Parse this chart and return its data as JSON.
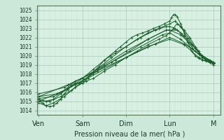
{
  "bg_color": "#cce8d8",
  "plot_bg_color": "#d8f0e4",
  "grid_color_major": "#aac8b8",
  "grid_color_minor": "#c0deca",
  "line_color": "#1a5c2a",
  "marker_color": "#1a5c2a",
  "xlabel_text": "Pression niveau de la mer( hPa )",
  "xtick_labels": [
    "Ven",
    "Sam",
    "Dim",
    "Lun",
    "M"
  ],
  "xtick_positions": [
    0,
    24,
    48,
    72,
    96
  ],
  "ylim": [
    1013.5,
    1025.5
  ],
  "yticks": [
    1014,
    1015,
    1016,
    1017,
    1018,
    1019,
    1020,
    1021,
    1022,
    1023,
    1024,
    1025
  ],
  "xlim": [
    -1,
    100
  ],
  "series": [
    [
      0,
      1015.0,
      2,
      1014.8,
      4,
      1014.5,
      6,
      1014.4,
      8,
      1014.5,
      10,
      1014.8,
      12,
      1015.2,
      14,
      1015.8,
      16,
      1016.3,
      18,
      1016.7,
      20,
      1017.0,
      22,
      1017.0,
      24,
      1017.0,
      27,
      1017.5,
      30,
      1018.2,
      33,
      1018.8,
      36,
      1019.5,
      39,
      1020.0,
      42,
      1020.5,
      45,
      1021.0,
      48,
      1021.5,
      51,
      1022.0,
      54,
      1022.3,
      57,
      1022.5,
      60,
      1022.7,
      63,
      1023.0,
      66,
      1023.2,
      69,
      1023.5,
      72,
      1023.8,
      73,
      1024.2,
      74,
      1024.5,
      75,
      1024.5,
      76,
      1024.3,
      78,
      1023.5,
      80,
      1022.5,
      82,
      1021.5,
      84,
      1020.5,
      86,
      1020.0,
      88,
      1019.7,
      90,
      1019.5,
      92,
      1019.4,
      94,
      1019.3,
      96,
      1019.2
    ],
    [
      0,
      1015.2,
      4,
      1015.0,
      8,
      1015.2,
      12,
      1015.8,
      16,
      1016.5,
      20,
      1017.2,
      24,
      1017.5,
      30,
      1018.5,
      36,
      1019.5,
      42,
      1020.3,
      48,
      1021.0,
      54,
      1021.8,
      60,
      1022.5,
      66,
      1023.0,
      72,
      1023.5,
      75,
      1023.8,
      78,
      1023.2,
      82,
      1022.0,
      86,
      1020.8,
      90,
      1020.0,
      94,
      1019.5,
      96,
      1019.3
    ],
    [
      0,
      1015.0,
      6,
      1015.0,
      12,
      1015.5,
      18,
      1016.2,
      24,
      1017.2,
      32,
      1018.5,
      40,
      1019.8,
      48,
      1021.0,
      56,
      1022.0,
      64,
      1022.8,
      70,
      1023.2,
      72,
      1023.2,
      75,
      1023.0,
      78,
      1022.5,
      82,
      1021.5,
      86,
      1020.5,
      90,
      1019.8,
      94,
      1019.4,
      96,
      1019.2
    ],
    [
      0,
      1015.3,
      8,
      1015.5,
      16,
      1016.3,
      24,
      1017.5,
      36,
      1019.0,
      48,
      1020.5,
      60,
      1021.8,
      70,
      1022.8,
      72,
      1022.8,
      76,
      1022.8,
      80,
      1022.2,
      84,
      1021.3,
      88,
      1020.3,
      92,
      1019.6,
      96,
      1019.1
    ],
    [
      0,
      1015.5,
      10,
      1015.8,
      20,
      1016.8,
      30,
      1018.0,
      40,
      1019.3,
      50,
      1020.5,
      60,
      1021.8,
      70,
      1022.8,
      72,
      1022.8,
      78,
      1022.3,
      84,
      1021.2,
      90,
      1020.0,
      96,
      1019.2
    ],
    [
      0,
      1015.8,
      14,
      1016.5,
      28,
      1018.0,
      42,
      1019.5,
      56,
      1021.0,
      68,
      1022.3,
      72,
      1022.5,
      78,
      1021.8,
      84,
      1020.8,
      90,
      1019.8,
      96,
      1019.2
    ],
    [
      0,
      1015.5,
      16,
      1016.8,
      32,
      1018.3,
      48,
      1019.8,
      64,
      1021.3,
      72,
      1022.0,
      80,
      1021.3,
      88,
      1020.2,
      96,
      1019.3
    ],
    [
      0,
      1015.0,
      12,
      1016.0,
      24,
      1017.2,
      36,
      1018.5,
      48,
      1019.8,
      60,
      1021.0,
      72,
      1021.8,
      80,
      1021.2,
      88,
      1019.8,
      96,
      1019.0
    ],
    [
      0,
      1014.8,
      4,
      1014.5,
      8,
      1014.8,
      14,
      1015.5,
      20,
      1016.5,
      26,
      1017.2,
      30,
      1017.5,
      36,
      1018.3,
      42,
      1019.0,
      48,
      1019.8,
      54,
      1020.5,
      60,
      1021.2,
      66,
      1021.8,
      70,
      1022.2,
      72,
      1022.5,
      74,
      1023.0,
      76,
      1023.5,
      78,
      1023.2,
      80,
      1022.8,
      83,
      1022.0,
      86,
      1021.0,
      88,
      1020.5,
      90,
      1019.8,
      92,
      1019.5,
      94,
      1019.3,
      96,
      1019.2
    ]
  ]
}
